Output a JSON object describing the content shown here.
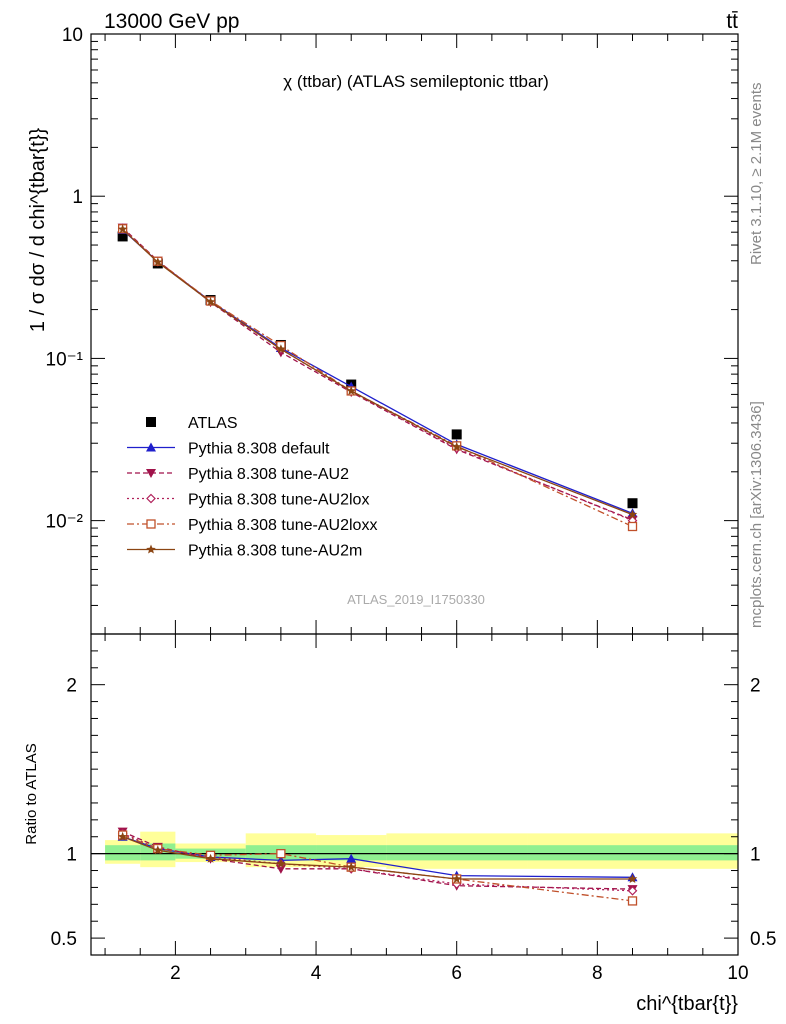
{
  "header": {
    "left": "13000 GeV pp",
    "right": "tt̄"
  },
  "side_labels": {
    "rivet": "Rivet 3.1.10, ≥ 2.1M events",
    "mcplots": "mcplots.cern.ch [arXiv:1306.3436]"
  },
  "watermark": "ATLAS_2019_I1750330",
  "colors": {
    "data": "#000000",
    "default": "#1f1fcc",
    "au2": "#a0124a",
    "au2lox": "#b0205a",
    "au2loxx": "#c0502a",
    "au2m": "#8b4513",
    "band_inner": "#90f090",
    "band_outer": "#ffff99"
  },
  "chart_data": [
    {
      "type": "line",
      "title": "χ (ttbar) (ATLAS semileptonic ttbar)",
      "ylabel": "1 / σ dσ / d chi^{tbar{t}}",
      "yscale": "log",
      "ylim": [
        0.002,
        10
      ],
      "xlim": [
        0.8,
        10
      ],
      "y_ticks": [
        {
          "value": 10,
          "label": "10"
        },
        {
          "value": 1,
          "label": "1"
        },
        {
          "value": 0.1,
          "label": "10⁻¹"
        },
        {
          "value": 0.01,
          "label": "10⁻²"
        }
      ],
      "x": [
        1.25,
        1.75,
        2.5,
        3.5,
        4.5,
        6.0,
        8.5
      ],
      "series": [
        {
          "name": "ATLAS",
          "key": "data",
          "marker": "square",
          "dash": "none",
          "values": [
            0.565,
            0.385,
            0.229,
            0.121,
            0.069,
            0.034,
            0.0128
          ]
        },
        {
          "name": "Pythia 8.308 default",
          "key": "default",
          "marker": "triangle-up",
          "dash": "solid",
          "values": [
            0.62,
            0.395,
            0.225,
            0.116,
            0.067,
            0.0295,
            0.0111
          ]
        },
        {
          "name": "Pythia 8.308 tune-AU2",
          "key": "au2",
          "marker": "triangle-down",
          "dash": "5,3",
          "values": [
            0.64,
            0.4,
            0.222,
            0.109,
            0.062,
            0.0275,
            0.0101
          ]
        },
        {
          "name": "Pythia 8.308 tune-AU2lox",
          "key": "au2lox",
          "marker": "diamond",
          "dash": "2,3",
          "values": [
            0.635,
            0.395,
            0.224,
            0.114,
            0.0625,
            0.0279,
            0.01
          ]
        },
        {
          "name": "Pythia 8.308 tune-AU2loxx",
          "key": "au2loxx",
          "marker": "square-open",
          "dash": "7,3,2,3",
          "values": [
            0.63,
            0.397,
            0.226,
            0.12,
            0.063,
            0.0289,
            0.0092
          ]
        },
        {
          "name": "Pythia 8.308 tune-AU2m",
          "key": "au2m",
          "marker": "star",
          "dash": "solid",
          "values": [
            0.625,
            0.392,
            0.223,
            0.114,
            0.063,
            0.0285,
            0.0109
          ]
        }
      ]
    },
    {
      "type": "line",
      "ylabel": "Ratio to ATLAS",
      "xlabel": "chi^{tbar{t}}",
      "ylim": [
        0.4,
        2.3
      ],
      "xlim": [
        0.8,
        10
      ],
      "y_ticks": [
        {
          "value": 2,
          "label": "2"
        },
        {
          "value": 1,
          "label": "1"
        },
        {
          "value": 0.5,
          "label": "0.5"
        }
      ],
      "x_ticks": [
        2,
        4,
        6,
        8,
        10
      ],
      "bins": [
        [
          1.0,
          1.5
        ],
        [
          1.5,
          2.0
        ],
        [
          2.0,
          3.0
        ],
        [
          3.0,
          4.0
        ],
        [
          4.0,
          5.0
        ],
        [
          5.0,
          7.0
        ],
        [
          7.0,
          10.0
        ]
      ],
      "band_inner": [
        [
          0.96,
          1.05
        ],
        [
          0.96,
          1.06
        ],
        [
          0.97,
          1.03
        ],
        [
          0.96,
          1.05
        ],
        [
          0.96,
          1.05
        ],
        [
          0.96,
          1.05
        ],
        [
          0.96,
          1.05
        ]
      ],
      "band_outer": [
        [
          0.94,
          1.08
        ],
        [
          0.92,
          1.13
        ],
        [
          0.95,
          1.06
        ],
        [
          0.92,
          1.12
        ],
        [
          0.92,
          1.11
        ],
        [
          0.91,
          1.12
        ],
        [
          0.91,
          1.12
        ]
      ],
      "x": [
        1.25,
        1.75,
        2.5,
        3.5,
        4.5,
        6.0,
        8.5
      ],
      "series": [
        {
          "name": "Pythia 8.308 default",
          "key": "default",
          "marker": "triangle-up",
          "dash": "solid",
          "values": [
            1.1,
            1.03,
            0.98,
            0.96,
            0.97,
            0.87,
            0.86
          ]
        },
        {
          "name": "Pythia 8.308 tune-AU2",
          "key": "au2",
          "marker": "triangle-down",
          "dash": "5,3",
          "values": [
            1.13,
            1.04,
            0.97,
            0.91,
            0.91,
            0.81,
            0.79
          ]
        },
        {
          "name": "Pythia 8.308 tune-AU2lox",
          "key": "au2lox",
          "marker": "diamond",
          "dash": "2,3",
          "values": [
            1.12,
            1.03,
            0.98,
            0.94,
            0.91,
            0.82,
            0.78
          ]
        },
        {
          "name": "Pythia 8.308 tune-AU2loxx",
          "key": "au2loxx",
          "marker": "square-open",
          "dash": "7,3,2,3",
          "values": [
            1.11,
            1.03,
            0.99,
            1.0,
            0.92,
            0.85,
            0.72
          ]
        },
        {
          "name": "Pythia 8.308 tune-AU2m",
          "key": "au2m",
          "marker": "star",
          "dash": "solid",
          "values": [
            1.1,
            1.02,
            0.97,
            0.94,
            0.92,
            0.85,
            0.85
          ]
        }
      ]
    }
  ]
}
